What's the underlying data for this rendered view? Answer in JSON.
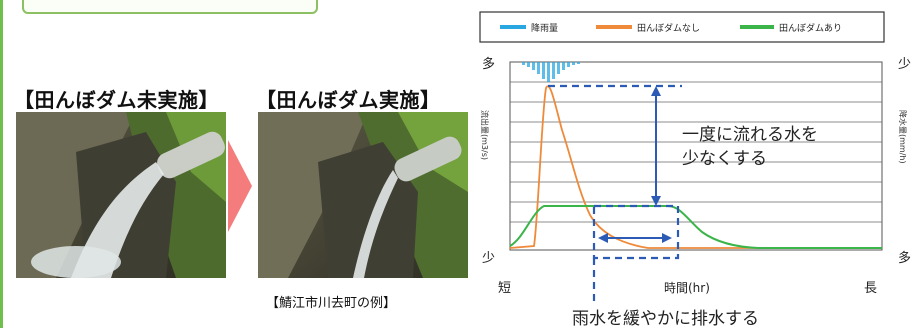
{
  "labels": {
    "before": "【田んぼダム未実施】",
    "after": "【田んぼダム実施】",
    "caption": "【鯖江市川去町の例】"
  },
  "chart_data": {
    "type": "line",
    "legend": [
      "降雨量",
      "田んぼダムなし",
      "田んぼダムあり"
    ],
    "colors": {
      "rain": "#29a7e1",
      "without": "#ee8a3a",
      "with": "#3bb54a",
      "arrow": "#2b5bb5",
      "dash": "#2b5bb5"
    },
    "y_left_label": "流出量(m3/s)",
    "y_right_label": "降水量(mm/h)",
    "x_label": "時間(hr)",
    "y_top": "多",
    "y_bottom": "少",
    "y_right_top": "少",
    "y_right_bottom": "多",
    "x_left": "短",
    "x_right": "長",
    "annotation_peak": [
      "一度に流れる水を",
      "少なくする"
    ],
    "annotation_slow": "雨水を緩やかに排水する"
  }
}
